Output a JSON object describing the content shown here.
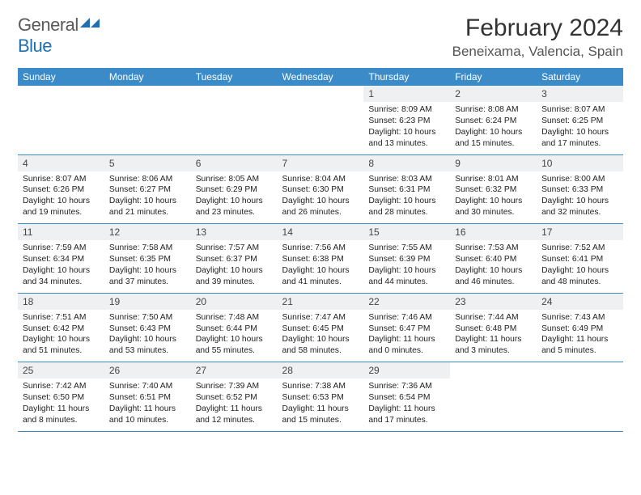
{
  "brand": {
    "part1": "General",
    "part2": "Blue"
  },
  "title": "February 2024",
  "location": "Beneixama, Valencia, Spain",
  "colors": {
    "header_bg": "#3b8bc9",
    "header_text": "#ffffff",
    "daynum_bg": "#eef0f2",
    "row_border": "#3b8bc9",
    "brand_gray": "#5a5a5a",
    "brand_blue": "#1f6fb2",
    "text": "#222222",
    "page_bg": "#ffffff"
  },
  "day_headers": [
    "Sunday",
    "Monday",
    "Tuesday",
    "Wednesday",
    "Thursday",
    "Friday",
    "Saturday"
  ],
  "weeks": [
    [
      null,
      null,
      null,
      null,
      {
        "n": "1",
        "sr": "8:09 AM",
        "ss": "6:23 PM",
        "dl": "10 hours and 13 minutes."
      },
      {
        "n": "2",
        "sr": "8:08 AM",
        "ss": "6:24 PM",
        "dl": "10 hours and 15 minutes."
      },
      {
        "n": "3",
        "sr": "8:07 AM",
        "ss": "6:25 PM",
        "dl": "10 hours and 17 minutes."
      }
    ],
    [
      {
        "n": "4",
        "sr": "8:07 AM",
        "ss": "6:26 PM",
        "dl": "10 hours and 19 minutes."
      },
      {
        "n": "5",
        "sr": "8:06 AM",
        "ss": "6:27 PM",
        "dl": "10 hours and 21 minutes."
      },
      {
        "n": "6",
        "sr": "8:05 AM",
        "ss": "6:29 PM",
        "dl": "10 hours and 23 minutes."
      },
      {
        "n": "7",
        "sr": "8:04 AM",
        "ss": "6:30 PM",
        "dl": "10 hours and 26 minutes."
      },
      {
        "n": "8",
        "sr": "8:03 AM",
        "ss": "6:31 PM",
        "dl": "10 hours and 28 minutes."
      },
      {
        "n": "9",
        "sr": "8:01 AM",
        "ss": "6:32 PM",
        "dl": "10 hours and 30 minutes."
      },
      {
        "n": "10",
        "sr": "8:00 AM",
        "ss": "6:33 PM",
        "dl": "10 hours and 32 minutes."
      }
    ],
    [
      {
        "n": "11",
        "sr": "7:59 AM",
        "ss": "6:34 PM",
        "dl": "10 hours and 34 minutes."
      },
      {
        "n": "12",
        "sr": "7:58 AM",
        "ss": "6:35 PM",
        "dl": "10 hours and 37 minutes."
      },
      {
        "n": "13",
        "sr": "7:57 AM",
        "ss": "6:37 PM",
        "dl": "10 hours and 39 minutes."
      },
      {
        "n": "14",
        "sr": "7:56 AM",
        "ss": "6:38 PM",
        "dl": "10 hours and 41 minutes."
      },
      {
        "n": "15",
        "sr": "7:55 AM",
        "ss": "6:39 PM",
        "dl": "10 hours and 44 minutes."
      },
      {
        "n": "16",
        "sr": "7:53 AM",
        "ss": "6:40 PM",
        "dl": "10 hours and 46 minutes."
      },
      {
        "n": "17",
        "sr": "7:52 AM",
        "ss": "6:41 PM",
        "dl": "10 hours and 48 minutes."
      }
    ],
    [
      {
        "n": "18",
        "sr": "7:51 AM",
        "ss": "6:42 PM",
        "dl": "10 hours and 51 minutes."
      },
      {
        "n": "19",
        "sr": "7:50 AM",
        "ss": "6:43 PM",
        "dl": "10 hours and 53 minutes."
      },
      {
        "n": "20",
        "sr": "7:48 AM",
        "ss": "6:44 PM",
        "dl": "10 hours and 55 minutes."
      },
      {
        "n": "21",
        "sr": "7:47 AM",
        "ss": "6:45 PM",
        "dl": "10 hours and 58 minutes."
      },
      {
        "n": "22",
        "sr": "7:46 AM",
        "ss": "6:47 PM",
        "dl": "11 hours and 0 minutes."
      },
      {
        "n": "23",
        "sr": "7:44 AM",
        "ss": "6:48 PM",
        "dl": "11 hours and 3 minutes."
      },
      {
        "n": "24",
        "sr": "7:43 AM",
        "ss": "6:49 PM",
        "dl": "11 hours and 5 minutes."
      }
    ],
    [
      {
        "n": "25",
        "sr": "7:42 AM",
        "ss": "6:50 PM",
        "dl": "11 hours and 8 minutes."
      },
      {
        "n": "26",
        "sr": "7:40 AM",
        "ss": "6:51 PM",
        "dl": "11 hours and 10 minutes."
      },
      {
        "n": "27",
        "sr": "7:39 AM",
        "ss": "6:52 PM",
        "dl": "11 hours and 12 minutes."
      },
      {
        "n": "28",
        "sr": "7:38 AM",
        "ss": "6:53 PM",
        "dl": "11 hours and 15 minutes."
      },
      {
        "n": "29",
        "sr": "7:36 AM",
        "ss": "6:54 PM",
        "dl": "11 hours and 17 minutes."
      },
      null,
      null
    ]
  ],
  "labels": {
    "sunrise": "Sunrise: ",
    "sunset": "Sunset: ",
    "daylight": "Daylight: "
  }
}
